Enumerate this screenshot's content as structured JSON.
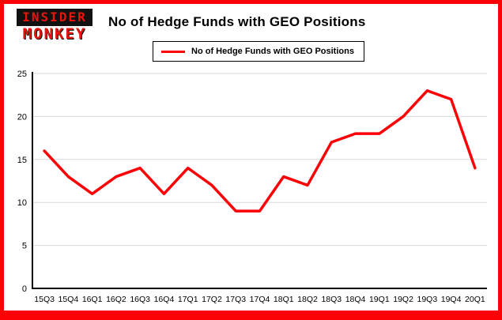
{
  "header": {
    "logo_line1": "INSIDER",
    "logo_line2": "MONKEY",
    "title": "No of Hedge Funds with GEO Positions"
  },
  "legend": {
    "label": "No of Hedge Funds with GEO Positions"
  },
  "colors": {
    "accent": "#fb0207",
    "frame_border": "#fb0207",
    "gridline": "#d8d8d8",
    "axis": "#000000"
  },
  "chart_data": {
    "type": "line",
    "title": "No of Hedge Funds with GEO Positions",
    "categories": [
      "15Q3",
      "15Q4",
      "16Q1",
      "16Q2",
      "16Q3",
      "16Q4",
      "17Q1",
      "17Q2",
      "17Q3",
      "17Q4",
      "18Q1",
      "18Q2",
      "18Q3",
      "18Q4",
      "19Q1",
      "19Q2",
      "19Q3",
      "19Q4",
      "20Q1"
    ],
    "series": [
      {
        "name": "No of Hedge Funds with GEO Positions",
        "values": [
          16,
          13,
          11,
          13,
          14,
          11,
          14,
          12,
          9,
          9,
          13,
          12,
          17,
          18,
          18,
          20,
          23,
          22,
          14
        ]
      }
    ],
    "xlabel": "",
    "ylabel": "",
    "ylim": [
      0,
      25
    ],
    "yticks": [
      0,
      5,
      10,
      15,
      20,
      25
    ],
    "grid": true,
    "legend_position": "top-left",
    "line_color": "#fb0207"
  }
}
